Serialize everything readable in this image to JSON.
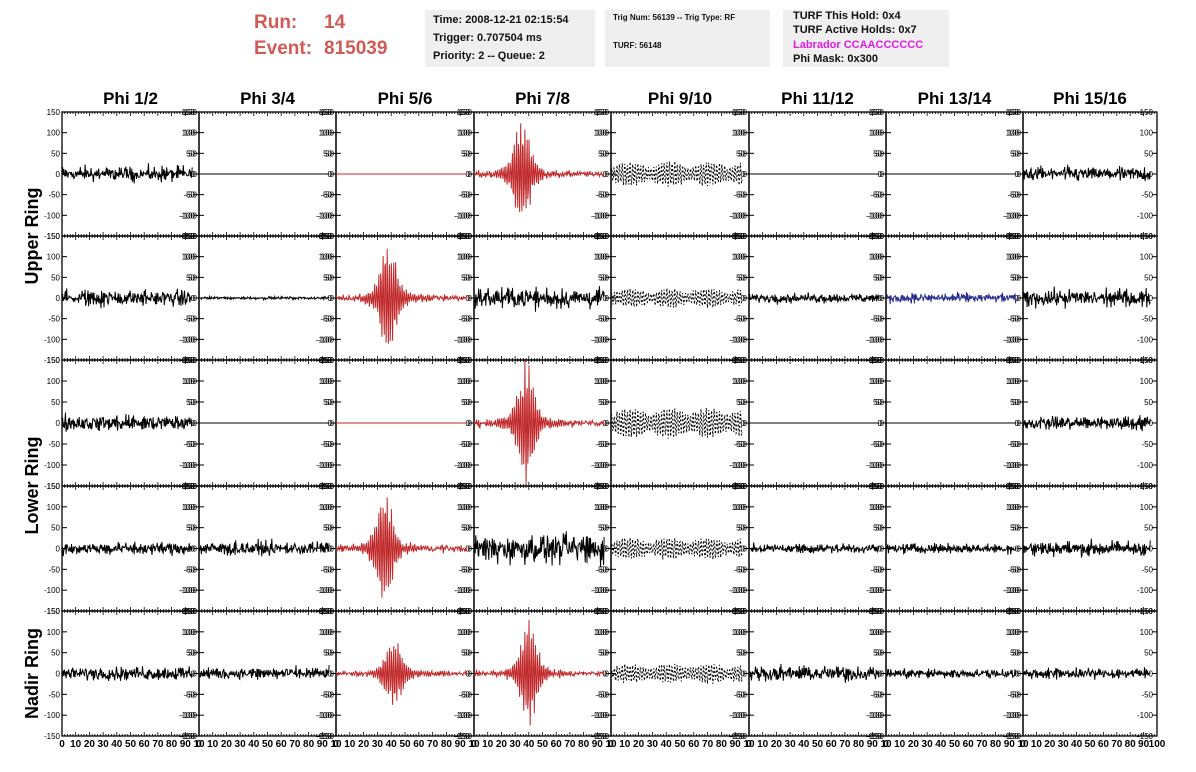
{
  "header": {
    "run_label": "Run:",
    "run_value": "14",
    "event_label": "Event:",
    "event_value": "815039"
  },
  "info_box_1": {
    "time": "Time: 2008-12-21 02:15:54",
    "trigger": "Trigger: 0.707504 ms",
    "priority_queue": "Priority: 2 -- Queue: 2"
  },
  "info_box_2": {
    "trig_line": "Trig Num: 56139 -- Trig Type: RF",
    "turf": "TURF: 56148"
  },
  "info_box_3": {
    "turf_hold": "TURF This Hold: 0x4",
    "turf_active": "TURF Active Holds: 0x7",
    "labrador": "Labrador CCAACCCCCC",
    "phi_mask": "Phi Mask: 0x300"
  },
  "colors": {
    "red_trace": "#c0282a",
    "blue_trace": "#2a2f8e",
    "black_trace": "#000000",
    "header_red": "#d15a54",
    "labrador_magenta": "#e11be1",
    "box_bg": "#efefef"
  },
  "chart_data": {
    "type": "line",
    "title": "",
    "columns": [
      "Phi 1/2",
      "Phi 3/4",
      "Phi 5/6",
      "Phi 7/8",
      "Phi 9/10",
      "Phi 11/12",
      "Phi 13/14",
      "Phi 15/16"
    ],
    "ring_labels": [
      "Upper Ring",
      "Lower Ring",
      "Nadir Ring"
    ],
    "xlim": [
      0,
      100
    ],
    "ylim": [
      -150,
      150
    ],
    "x_tick_labels": [
      "0",
      "10",
      "20",
      "30",
      "40",
      "50",
      "60",
      "70",
      "80",
      "90",
      "10"
    ],
    "x_tick_labels_last": [
      "0",
      "10",
      "20",
      "30",
      "40",
      "50",
      "60",
      "70",
      "80",
      "90",
      "100"
    ],
    "y_tick_labels": [
      "-150",
      "-100",
      "-50",
      "0",
      "50",
      "100",
      "150"
    ],
    "panels": [
      [
        {
          "style": "noise",
          "amp": 22,
          "color": "black"
        },
        {
          "style": "flat",
          "amp": 0,
          "color": "black"
        },
        {
          "style": "flat",
          "amp": 0,
          "color": "red"
        },
        {
          "style": "pulse",
          "amp": 22,
          "peak": 110,
          "center": 35,
          "color": "red"
        },
        {
          "style": "dashed",
          "amp": 28,
          "color": "black"
        },
        {
          "style": "flat",
          "amp": 0,
          "color": "black"
        },
        {
          "style": "flat",
          "amp": 0,
          "color": "black"
        },
        {
          "style": "noise",
          "amp": 22,
          "color": "black"
        }
      ],
      [
        {
          "style": "noise",
          "amp": 26,
          "color": "black"
        },
        {
          "style": "noise",
          "amp": 4,
          "color": "black"
        },
        {
          "style": "pulse",
          "amp": 24,
          "peak": 120,
          "center": 38,
          "color": "red"
        },
        {
          "style": "noise",
          "amp": 32,
          "color": "black"
        },
        {
          "style": "dashed",
          "amp": 22,
          "color": "black"
        },
        {
          "style": "noise",
          "amp": 14,
          "color": "black"
        },
        {
          "style": "noise",
          "amp": 14,
          "color": "blue"
        },
        {
          "style": "noise",
          "amp": 26,
          "color": "black"
        }
      ],
      [
        {
          "style": "noise",
          "amp": 24,
          "color": "black"
        },
        {
          "style": "flat",
          "amp": 0,
          "color": "black"
        },
        {
          "style": "flat",
          "amp": 0,
          "color": "red"
        },
        {
          "style": "pulse",
          "amp": 24,
          "peak": 130,
          "center": 38,
          "color": "red"
        },
        {
          "style": "dashed",
          "amp": 35,
          "color": "black"
        },
        {
          "style": "flat",
          "amp": 0,
          "color": "black"
        },
        {
          "style": "flat",
          "amp": 0,
          "color": "black"
        },
        {
          "style": "noise",
          "amp": 20,
          "color": "black"
        }
      ],
      [
        {
          "style": "noise",
          "amp": 18,
          "color": "black"
        },
        {
          "style": "noise",
          "amp": 20,
          "color": "black"
        },
        {
          "style": "pulse",
          "amp": 26,
          "peak": 120,
          "center": 35,
          "color": "red"
        },
        {
          "style": "noise",
          "amp": 45,
          "color": "black"
        },
        {
          "style": "dashed",
          "amp": 25,
          "color": "black"
        },
        {
          "style": "noise",
          "amp": 14,
          "color": "black"
        },
        {
          "style": "noise",
          "amp": 14,
          "color": "black"
        },
        {
          "style": "noise",
          "amp": 22,
          "color": "black"
        }
      ],
      [
        {
          "style": "noise",
          "amp": 20,
          "color": "black"
        },
        {
          "style": "noise",
          "amp": 18,
          "color": "black"
        },
        {
          "style": "pulse",
          "amp": 18,
          "peak": 70,
          "center": 42,
          "color": "red"
        },
        {
          "style": "pulse",
          "amp": 20,
          "peak": 110,
          "center": 40,
          "color": "red"
        },
        {
          "style": "dashed",
          "amp": 22,
          "color": "black"
        },
        {
          "style": "noise",
          "amp": 22,
          "color": "black"
        },
        {
          "style": "noise",
          "amp": 14,
          "color": "black"
        },
        {
          "style": "noise",
          "amp": 16,
          "color": "black"
        }
      ]
    ]
  }
}
